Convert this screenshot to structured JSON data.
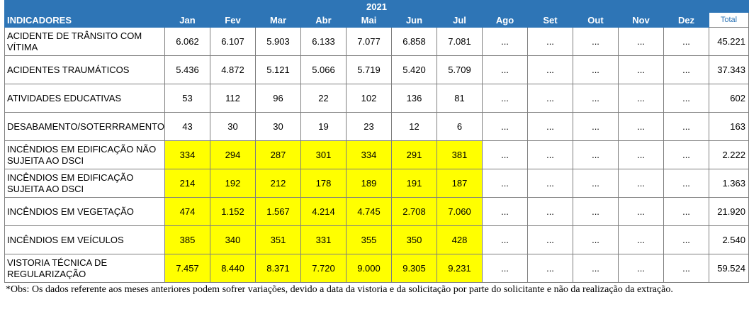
{
  "year": "2021",
  "headers": {
    "indicator": "INDICADORES",
    "months": [
      "Jan",
      "Fev",
      "Mar",
      "Abr",
      "Mai",
      "Jun",
      "Jul",
      "Ago",
      "Set",
      "Out",
      "Nov",
      "Dez"
    ],
    "total": "Total"
  },
  "rows": [
    {
      "label": "ACIDENTE DE TRÂNSITO COM VÍTIMA",
      "values": [
        "6.062",
        "6.107",
        "5.903",
        "6.133",
        "7.077",
        "6.858",
        "7.081",
        "...",
        "...",
        "...",
        "...",
        "..."
      ],
      "total": "45.221",
      "highlight": false
    },
    {
      "label": "ACIDENTES TRAUMÁTICOS",
      "values": [
        "5.436",
        "4.872",
        "5.121",
        "5.066",
        "5.719",
        "5.420",
        "5.709",
        "...",
        "...",
        "...",
        "...",
        "..."
      ],
      "total": "37.343",
      "highlight": false
    },
    {
      "label": "ATIVIDADES EDUCATIVAS",
      "values": [
        "53",
        "112",
        "96",
        "22",
        "102",
        "136",
        "81",
        "...",
        "...",
        "...",
        "...",
        "..."
      ],
      "total": "602",
      "highlight": false
    },
    {
      "label": "DESABAMENTO/SOTERRRAMENTO",
      "values": [
        "43",
        "30",
        "30",
        "19",
        "23",
        "12",
        "6",
        "...",
        "...",
        "...",
        "...",
        "..."
      ],
      "total": "163",
      "highlight": false
    },
    {
      "label": "INCÊNDIOS EM EDIFICAÇÃO NÃO SUJEITA AO DSCI",
      "values": [
        "334",
        "294",
        "287",
        "301",
        "334",
        "291",
        "381",
        "...",
        "...",
        "...",
        "...",
        "..."
      ],
      "total": "2.222",
      "highlight": true
    },
    {
      "label": "INCÊNDIOS EM EDIFICAÇÃO SUJEITA AO DSCI",
      "values": [
        "214",
        "192",
        "212",
        "178",
        "189",
        "191",
        "187",
        "...",
        "...",
        "...",
        "...",
        "..."
      ],
      "total": "1.363",
      "highlight": true
    },
    {
      "label": "INCÊNDIOS EM VEGETAÇÃO",
      "values": [
        "474",
        "1.152",
        "1.567",
        "4.214",
        "4.745",
        "2.708",
        "7.060",
        "...",
        "...",
        "...",
        "...",
        "..."
      ],
      "total": "21.920",
      "highlight": true
    },
    {
      "label": "INCÊNDIOS EM VEÍCULOS",
      "values": [
        "385",
        "340",
        "351",
        "331",
        "355",
        "350",
        "428",
        "...",
        "...",
        "...",
        "...",
        "..."
      ],
      "total": "2.540",
      "highlight": true
    },
    {
      "label": "VISTORIA TÉCNICA DE REGULARIZAÇÃO",
      "values": [
        "7.457",
        "8.440",
        "8.371",
        "7.720",
        "9.000",
        "9.305",
        "9.231",
        "...",
        "...",
        "...",
        "...",
        "..."
      ],
      "total": "59.524",
      "highlight": true
    }
  ],
  "highlight_color": "#ffff00",
  "header_color": "#2e75b6",
  "note": "*Obs:  Os dados referente aos meses anteriores podem sofrer variações, devido a data da vistoria e da solicitação por parte do solicitante e não da realização da extração."
}
